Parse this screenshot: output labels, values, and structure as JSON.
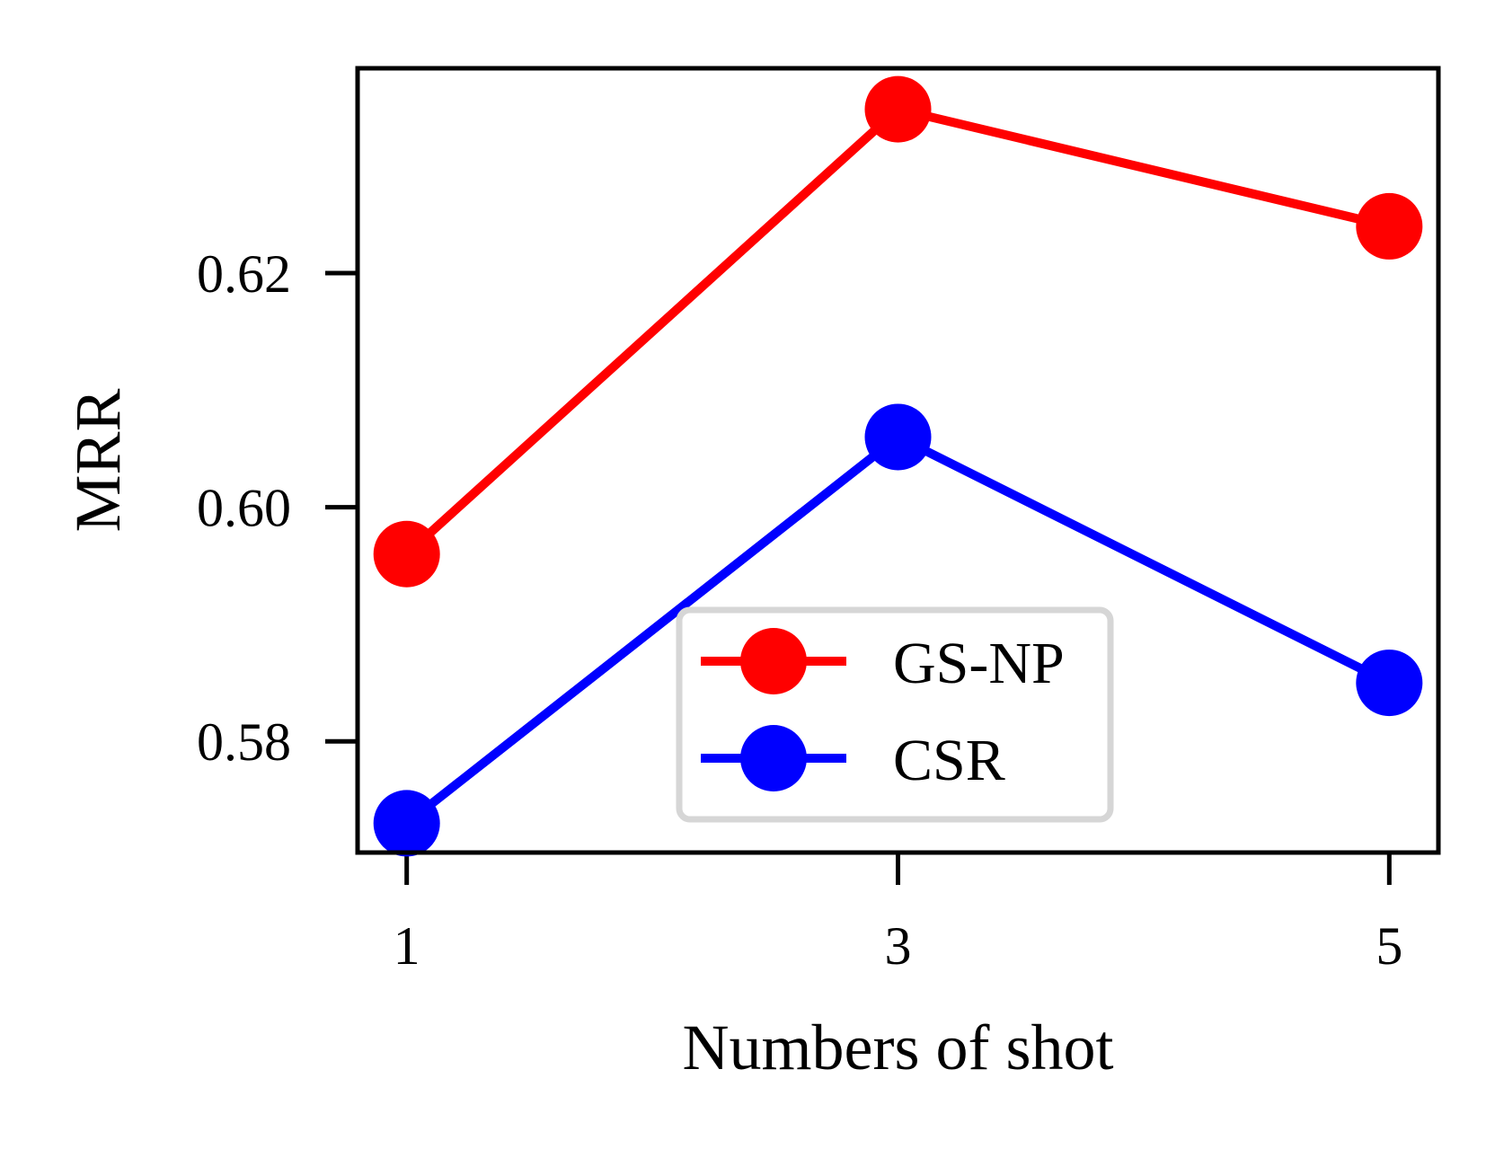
{
  "chart_data": {
    "type": "line",
    "title": "",
    "xlabel": "Numbers of shot",
    "ylabel": "MRR",
    "x": [
      1,
      3,
      5
    ],
    "xticks": [
      "1",
      "3",
      "5"
    ],
    "yticks": [
      "0.58",
      "0.60",
      "0.62"
    ],
    "ytick_values": [
      0.58,
      0.6,
      0.62
    ],
    "xlim": [
      0.8,
      5.2
    ],
    "ylim": [
      0.5705,
      0.6375
    ],
    "grid": false,
    "legend_position": "lower-center",
    "series": [
      {
        "name": "GS-NP",
        "values": [
          0.596,
          0.634,
          0.624
        ],
        "color": "#ff0000",
        "marker": "circle"
      },
      {
        "name": "CSR",
        "values": [
          0.573,
          0.606,
          0.585
        ],
        "color": "#0000ff",
        "marker": "circle"
      }
    ]
  }
}
